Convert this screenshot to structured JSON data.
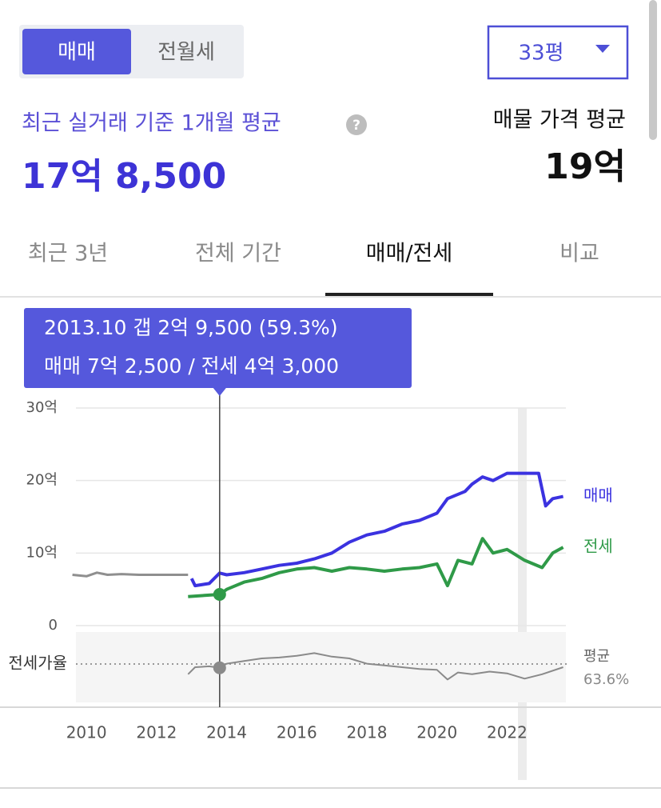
{
  "toggle": [
    "매매",
    "전월세"
  ],
  "active_toggle": 0,
  "size_select": "33평",
  "summary": {
    "label": "최근 실거래 기준 1개월 평균",
    "value": "17억 8,500"
  },
  "listing": {
    "label": "매물 가격 평균",
    "value": "19억"
  },
  "tabs": [
    "최근 3년",
    "전체 기간",
    "매매/전세",
    "비교"
  ],
  "active_tab": 2,
  "chart_data": {
    "type": "line",
    "xlim": [
      2009.7,
      2023.7
    ],
    "xticks": [
      2010,
      2012,
      2014,
      2016,
      2018,
      2020,
      2022
    ],
    "ylim": [
      0,
      30
    ],
    "yticks": [
      0,
      {
        "value": 10,
        "label": "10억"
      },
      {
        "value": 20,
        "label": "20억"
      },
      {
        "value": 30,
        "label": "30억"
      }
    ],
    "y2lim": [
      20,
      100
    ],
    "grid": true,
    "series": [
      {
        "color": "#8f8f8f",
        "x": [
          2009.6,
          2010.0,
          2010.3,
          2010.6,
          2011.0,
          2011.5,
          2012.0,
          2012.9
        ],
        "values": [
          7.0,
          6.8,
          7.3,
          7.0,
          7.1,
          7.0,
          7.0,
          7.0
        ]
      },
      {
        "name": "매매",
        "color": "#3b32e0",
        "x": [
          2013.0,
          2013.1,
          2013.5,
          2013.8,
          2014.0,
          2014.5,
          2015.0,
          2015.5,
          2016.0,
          2016.5,
          2017.0,
          2017.5,
          2018.0,
          2018.5,
          2019.0,
          2019.5,
          2020.0,
          2020.3,
          2020.8,
          2021.0,
          2021.3,
          2021.6,
          2022.0,
          2022.5,
          2022.9,
          2023.1,
          2023.3,
          2023.6
        ],
        "values": [
          6.5,
          5.5,
          5.8,
          7.25,
          7.0,
          7.3,
          7.8,
          8.3,
          8.6,
          9.2,
          10.0,
          11.5,
          12.5,
          13.0,
          14.0,
          14.5,
          15.5,
          17.5,
          18.5,
          19.5,
          20.5,
          20.0,
          21.0,
          21.0,
          21.0,
          16.5,
          17.5,
          17.8
        ]
      },
      {
        "name": "전세",
        "color": "#2f9a48",
        "x": [
          2012.9,
          2013.5,
          2013.8,
          2014.0,
          2014.5,
          2015.0,
          2015.5,
          2016.0,
          2016.5,
          2017.0,
          2017.5,
          2018.0,
          2018.5,
          2019.0,
          2019.5,
          2020.0,
          2020.3,
          2020.6,
          2021.0,
          2021.3,
          2021.6,
          2022.0,
          2022.5,
          2023.0,
          2023.3,
          2023.6
        ],
        "values": [
          4.0,
          4.2,
          4.3,
          5.0,
          6.0,
          6.5,
          7.3,
          7.8,
          8.0,
          7.5,
          8.0,
          7.8,
          7.5,
          7.8,
          8.0,
          8.5,
          5.5,
          9.0,
          8.5,
          12.0,
          10.0,
          10.5,
          9.0,
          8.0,
          10.0,
          10.8
        ]
      },
      {
        "name": "전세가율",
        "color": "#8a8a8a",
        "axis": "y2",
        "x": [
          2012.9,
          2013.1,
          2013.5,
          2013.8,
          2014.0,
          2014.5,
          2015.0,
          2015.5,
          2016.0,
          2016.5,
          2017.0,
          2017.5,
          2018.0,
          2018.5,
          2019.0,
          2019.5,
          2020.0,
          2020.3,
          2020.6,
          2021.0,
          2021.5,
          2022.0,
          2022.5,
          2023.0,
          2023.6
        ],
        "values": [
          52,
          60,
          61,
          59.3,
          64,
          67,
          70,
          71,
          73,
          76,
          72,
          70,
          64,
          62,
          60,
          58,
          57,
          46,
          54,
          52,
          55,
          53,
          47,
          52,
          60
        ]
      }
    ],
    "average": {
      "name": "평균",
      "value": 63.6,
      "value_label": "63.6%"
    },
    "tooltip": {
      "x": 2013.8,
      "lines": [
        "2013.10  갭 2억 9,500 (59.3%)",
        "매매 7억 2,500 / 전세 4억 3,000"
      ]
    }
  }
}
